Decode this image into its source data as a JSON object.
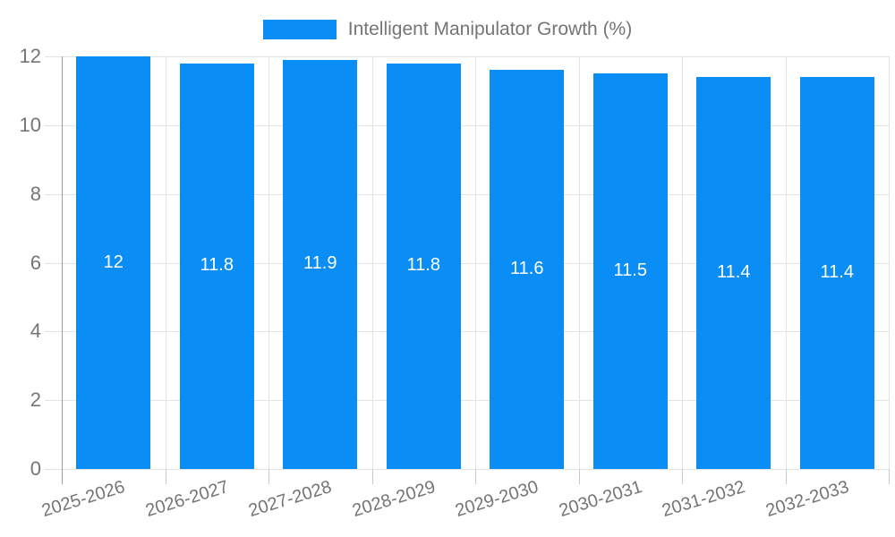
{
  "chart_data": {
    "type": "bar",
    "legend": "Intelligent Manipulator Growth (%)",
    "legend_position": "top",
    "categories": [
      "2025-2026",
      "2026-2027",
      "2027-2028",
      "2028-2029",
      "2029-2030",
      "2030-2031",
      "2031-2032",
      "2032-2033"
    ],
    "series": [
      {
        "name": "Intelligent Manipulator Growth (%)",
        "values": [
          12,
          11.8,
          11.9,
          11.8,
          11.6,
          11.5,
          11.4,
          11.4
        ],
        "value_labels": [
          "12",
          "11.8",
          "11.9",
          "11.8",
          "11.6",
          "11.5",
          "11.4",
          "11.4"
        ]
      }
    ],
    "xlabel": "",
    "ylabel": "",
    "ylim": [
      0,
      12
    ],
    "yticks": [
      0,
      2,
      4,
      6,
      8,
      10,
      12
    ],
    "ytick_labels": [
      "0",
      "2",
      "4",
      "6",
      "8",
      "10",
      "12"
    ],
    "grid": true,
    "value_labels_inside_bars": true,
    "colors": {
      "bar": "#0a8df5",
      "gridline": "#e3e3e3",
      "axis_line": "#9e9e9e",
      "tick_mark": "#c9c9c9",
      "tick_label": "#757575",
      "value_label": "#ffffff",
      "background": "#ffffff"
    }
  }
}
